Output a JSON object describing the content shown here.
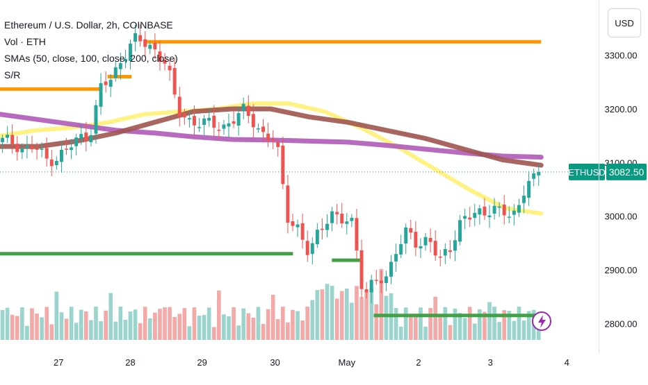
{
  "legend": {
    "symbol": "Ethereum / U.S. Dollar, 2h, COINBASE",
    "volume": "Vol · ETH",
    "smas": "SMAs (50, close, 100, close, 200, close)",
    "sr": "S/R"
  },
  "currency_button": "USD",
  "ticker_tag": "ETHUSD",
  "last_price": "3082.50",
  "colors": {
    "up": "#26a69a",
    "down": "#ef5350",
    "vol_up": "#9bd4cc",
    "vol_down": "#f4a9a9",
    "sma50": "#fff176",
    "sma100": "#a0554f",
    "sma200": "#b05ab8",
    "resistance": "#ff9800",
    "support": "#43a047",
    "last_price_bg": "#089981"
  },
  "chart_data": {
    "type": "candlestick",
    "y_ticks": [
      2800,
      2900,
      3000,
      3100,
      3200,
      3300
    ],
    "y_tick_labels": [
      "2800.00",
      "2900.00",
      "3000.00",
      "3100.00",
      "3200.00",
      "3300.00"
    ],
    "x_tick_labels": [
      "27",
      "28",
      "29",
      "30",
      "May",
      "2",
      "3",
      "4"
    ],
    "ylim": [
      2750,
      3390
    ],
    "close_anchors": [
      3140,
      3138,
      3125,
      3128,
      3105,
      3110,
      3125,
      3145,
      3155,
      3240,
      3255,
      3300,
      3330,
      3320,
      3310,
      3285,
      3195,
      3180,
      3175,
      3170,
      3165,
      3180,
      3195,
      3175,
      3150,
      3140,
      3000,
      2980,
      2925,
      2975,
      3010,
      2990,
      2985,
      2855,
      2880,
      2875,
      2945,
      2975,
      2935,
      2965,
      2920,
      2935,
      3000,
      3010,
      2995,
      3020,
      3010,
      2995,
      3070,
      3082.5
    ],
    "sma50": [
      3150,
      3160,
      3165,
      3175,
      3190,
      3195,
      3200,
      3210,
      3210,
      3195,
      3165,
      3130,
      3090,
      3050,
      3015,
      3005
    ],
    "sma100": [
      3130,
      3130,
      3140,
      3155,
      3175,
      3195,
      3200,
      3200,
      3185,
      3175,
      3160,
      3145,
      3125,
      3105,
      3095
    ],
    "sma200": [
      3190,
      3180,
      3170,
      3160,
      3155,
      3148,
      3143,
      3142,
      3140,
      3138,
      3132,
      3125,
      3118,
      3112,
      3110
    ],
    "resistance_levels": [
      {
        "price": 3325,
        "start": 0.24,
        "end": 0.905
      },
      {
        "price": 3260,
        "start": 0.18,
        "end": 0.22
      },
      {
        "price": 3237,
        "start": 0.0,
        "end": 0.17
      }
    ],
    "support_levels": [
      {
        "price": 2930,
        "start": 0.0,
        "end": 0.49
      },
      {
        "price": 2918,
        "start": 0.555,
        "end": 0.605
      },
      {
        "price": 2815,
        "start": 0.625,
        "end": 0.9
      }
    ],
    "last_price": 3082.5
  }
}
